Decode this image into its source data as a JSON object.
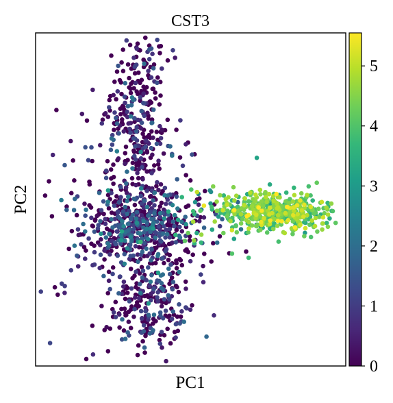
{
  "chart_data": {
    "type": "scatter",
    "title": "CST3",
    "xlabel": "PC1",
    "ylabel": "PC2",
    "xlim": [
      -4,
      11
    ],
    "ylim": [
      -6,
      10
    ],
    "x_ticks_shown": false,
    "y_ticks_shown": false,
    "grid": false,
    "color_by": "CST3 expression",
    "colormap": "viridis",
    "colorbar": {
      "placement": "right",
      "vmin": 0,
      "vmax": 5.55,
      "ticks": [
        0,
        1,
        2,
        3,
        4,
        5
      ],
      "tick_labels": [
        "0",
        "1",
        "2",
        "3",
        "4",
        "5"
      ]
    },
    "colormap_stops": [
      "#440154",
      "#482878",
      "#3e4989",
      "#31688e",
      "#26828e",
      "#1f9e89",
      "#35b779",
      "#6ece58",
      "#b5de2b",
      "#fde725"
    ],
    "clusters": [
      {
        "cx": 1.1,
        "cy": 0.7,
        "sx": 1.4,
        "sy": 0.9,
        "n": 520,
        "vmean": 1.2,
        "vsd": 0.8,
        "vlow": 0.35
      },
      {
        "cx": 1.0,
        "cy": 5.5,
        "sx": 0.75,
        "sy": 2.2,
        "n": 320,
        "vmean": 0.7,
        "vsd": 0.7,
        "vlow": 0.5
      },
      {
        "cx": 1.5,
        "cy": -2.9,
        "sx": 0.9,
        "sy": 1.2,
        "n": 230,
        "vmean": 0.8,
        "vsd": 0.7,
        "vlow": 0.45
      },
      {
        "cx": 7.6,
        "cy": 1.4,
        "sx": 1.3,
        "sy": 0.45,
        "n": 480,
        "vmean": 4.2,
        "vsd": 0.6,
        "vlow": 0.0
      },
      {
        "cx": 0.0,
        "cy": 1.2,
        "sx": 2.0,
        "sy": 2.8,
        "n": 130,
        "vmean": 0.9,
        "vsd": 0.9,
        "vlow": 0.4
      },
      {
        "cx": 4.5,
        "cy": 1.0,
        "sx": 1.3,
        "sy": 0.7,
        "n": 45,
        "vmean": 3.2,
        "vsd": 1.0,
        "vlow": 0.05
      }
    ],
    "outliers": [
      {
        "x": 1.5,
        "y": 9.2,
        "v": 1.5
      },
      {
        "x": 1.6,
        "y": 9.25,
        "v": 1.5
      },
      {
        "x": 1.7,
        "y": 8.3,
        "v": 1.6
      },
      {
        "x": -3.3,
        "y": -4.9,
        "v": 1.2
      },
      {
        "x": 4.1,
        "y": -1.2,
        "v": 0.2
      },
      {
        "x": 6.7,
        "y": 4.0,
        "v": 3.2
      },
      {
        "x": 10.3,
        "y": 1.8,
        "v": 4.6
      },
      {
        "x": 9.6,
        "y": 2.8,
        "v": 4.2
      },
      {
        "x": 6.3,
        "y": -0.8,
        "v": 3.8
      },
      {
        "x": 5.5,
        "y": -0.6,
        "v": 4.0
      },
      {
        "x": -2.3,
        "y": 4.8,
        "v": 0.3
      },
      {
        "x": -1.3,
        "y": 4.5,
        "v": 1.3
      },
      {
        "x": 3.0,
        "y": 5.8,
        "v": 0.9
      },
      {
        "x": -2.5,
        "y": 1.5,
        "v": 1.7
      },
      {
        "x": -2.0,
        "y": -0.7,
        "v": 1.5
      }
    ]
  }
}
